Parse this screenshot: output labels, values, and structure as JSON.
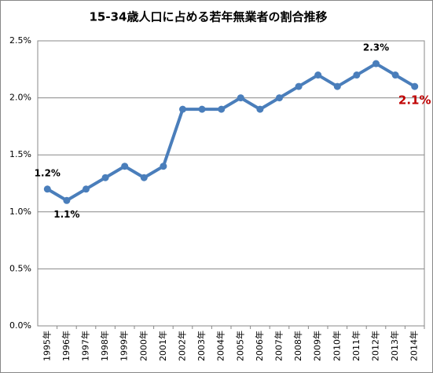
{
  "chart_data": {
    "type": "line",
    "title": "15-34歳人口に占める若年無業者の割合推移",
    "categories": [
      "1995年",
      "1996年",
      "1997年",
      "1998年",
      "1999年",
      "2000年",
      "2001年",
      "2002年",
      "2003年",
      "2004年",
      "2005年",
      "2006年",
      "2007年",
      "2008年",
      "2009年",
      "2010年",
      "2011年",
      "2012年",
      "2013年",
      "2014年"
    ],
    "values": [
      1.2,
      1.1,
      1.2,
      1.3,
      1.4,
      1.3,
      1.4,
      1.9,
      1.9,
      1.9,
      2.0,
      1.9,
      2.0,
      2.1,
      2.2,
      2.1,
      2.2,
      2.3,
      2.2,
      2.1
    ],
    "value_labels": [
      "1.2%",
      "1.1%",
      null,
      null,
      null,
      null,
      null,
      null,
      null,
      null,
      null,
      null,
      null,
      null,
      null,
      null,
      null,
      "2.3%",
      null,
      "2.1%"
    ],
    "value_label_colors": [
      "#000000",
      "#000000",
      null,
      null,
      null,
      null,
      null,
      null,
      null,
      null,
      null,
      null,
      null,
      null,
      null,
      null,
      null,
      "#000000",
      null,
      "#c00000"
    ],
    "color": "#4a7ebb",
    "ylim": [
      0,
      2.5
    ],
    "yticks": [
      {
        "value": 0,
        "label": "0.0%"
      },
      {
        "value": 0.5,
        "label": "0.5%"
      },
      {
        "value": 1,
        "label": "1.0%"
      },
      {
        "value": 1.5,
        "label": "1.5%"
      },
      {
        "value": 2,
        "label": "2.0%"
      },
      {
        "value": 2.5,
        "label": "2.5%"
      }
    ],
    "grid": true
  }
}
